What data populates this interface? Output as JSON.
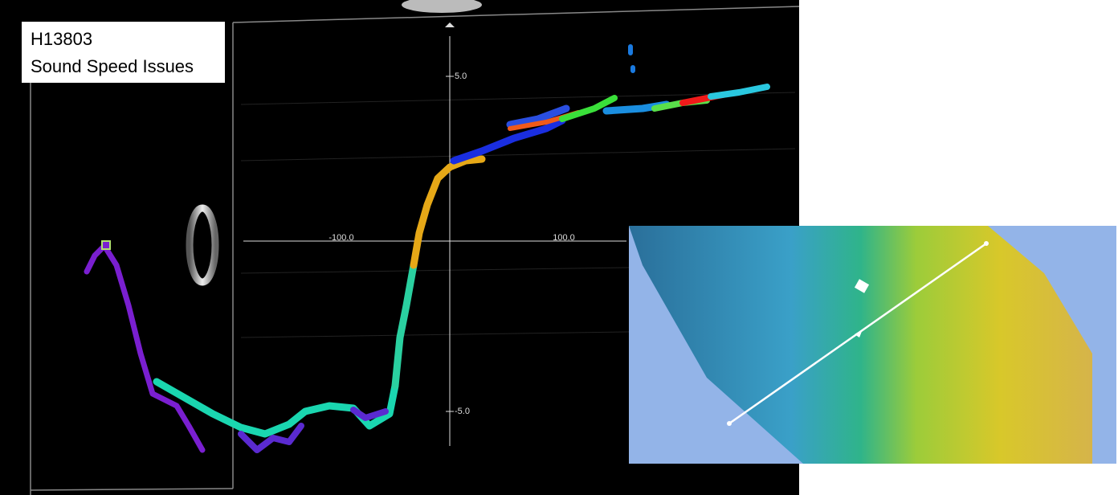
{
  "label": {
    "line1": "H13803",
    "line2": "Sound Speed Issues"
  },
  "axes": {
    "y_top": "5.0",
    "y_bottom": "-5.0",
    "x_left": "-100.0",
    "x_right": "100.0"
  }
}
